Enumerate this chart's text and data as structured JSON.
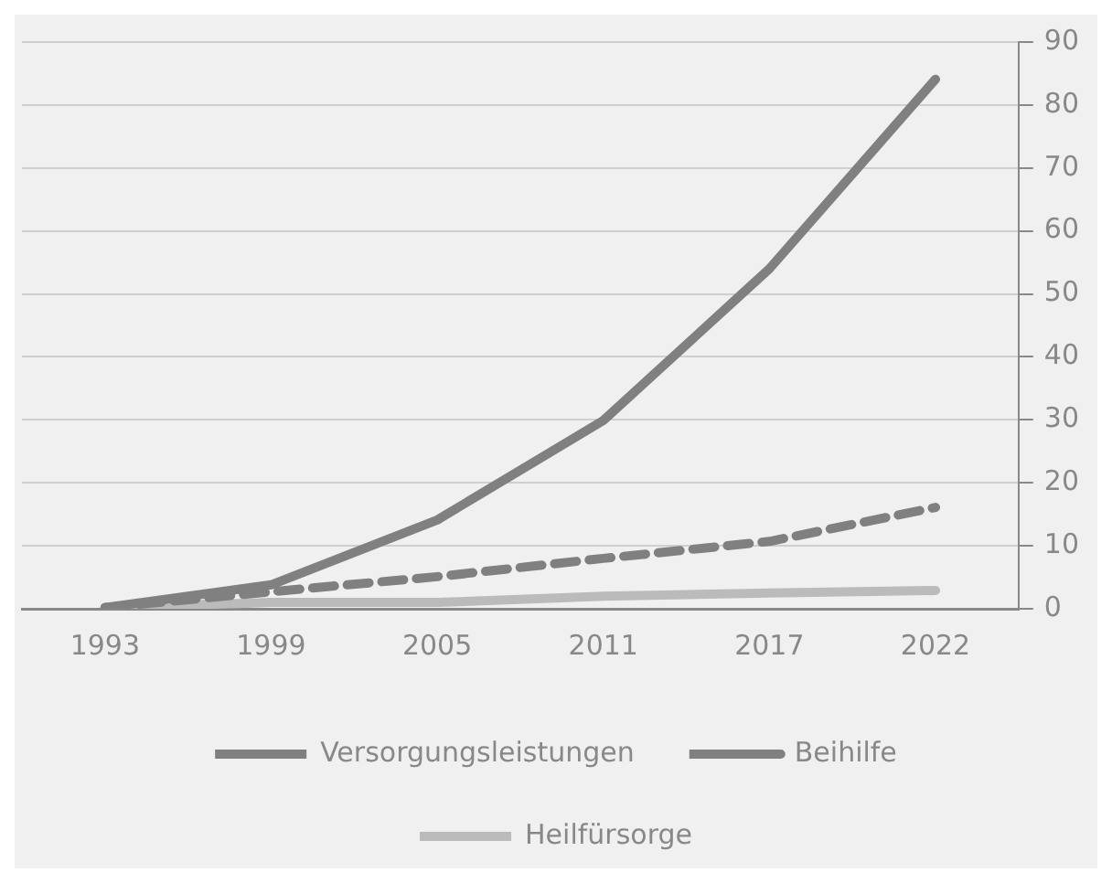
{
  "chart_data": {
    "type": "line",
    "categories": [
      "1993",
      "1999",
      "2005",
      "2011",
      "2017",
      "2022"
    ],
    "series": [
      {
        "name": "Versorgungsleistungen",
        "color": "#808080",
        "values": [
          0.2,
          3.8,
          14.1,
          29.9,
          54,
          84.1
        ],
        "line_style": "solid"
      },
      {
        "name": "Beihilfe",
        "color": "#808080",
        "values": [
          0.2,
          2.7,
          5.1,
          8,
          10.7,
          16.1
        ],
        "line_style": "dashed"
      },
      {
        "name": "Heilfürsorge",
        "color": "#bbbbbb",
        "values": [
          0.2,
          1,
          1,
          2,
          2.5,
          2.9
        ],
        "line_style": "solid"
      }
    ],
    "ylim": [
      0,
      90
    ],
    "yticks": [
      0,
      10,
      20,
      30,
      40,
      50,
      60,
      70,
      80,
      90
    ],
    "grid": "y",
    "legend": "bottom",
    "marker": "none"
  }
}
